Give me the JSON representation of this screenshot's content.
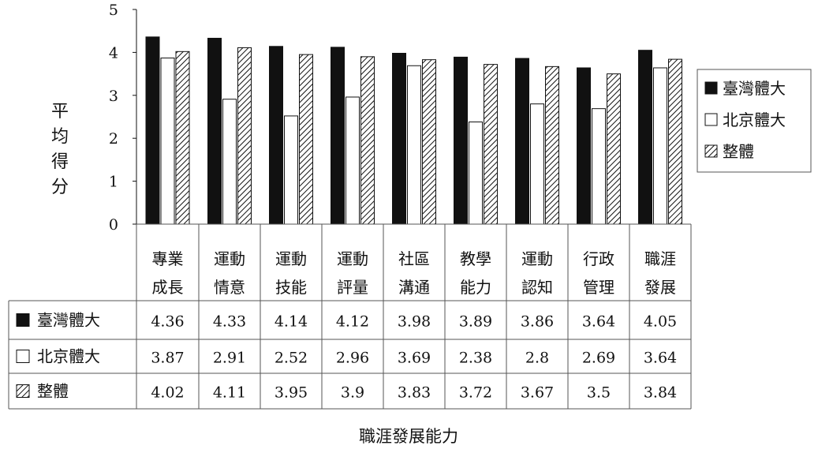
{
  "chart_data": {
    "type": "bar",
    "ylabel": "平均得分",
    "xlabel": "職涯發展能力",
    "ylim": [
      0,
      5
    ],
    "yticks": [
      "0",
      "1",
      "2",
      "3",
      "4",
      "5"
    ],
    "categories": [
      [
        "專業",
        "成長"
      ],
      [
        "運動",
        "情意"
      ],
      [
        "運動",
        "技能"
      ],
      [
        "運動",
        "評量"
      ],
      [
        "社區",
        "溝通"
      ],
      [
        "教學",
        "能力"
      ],
      [
        "運動",
        "認知"
      ],
      [
        "行政",
        "管理"
      ],
      [
        "職涯",
        "發展"
      ]
    ],
    "series": [
      {
        "name": "臺灣體大",
        "fill": "solid-black",
        "values": [
          4.36,
          4.33,
          4.14,
          4.12,
          3.98,
          3.89,
          3.86,
          3.64,
          4.05
        ],
        "labels": [
          "4.36",
          "4.33",
          "4.14",
          "4.12",
          "3.98",
          "3.89",
          "3.86",
          "3.64",
          "4.05"
        ]
      },
      {
        "name": "北京體大",
        "fill": "white",
        "values": [
          3.87,
          2.91,
          2.52,
          2.96,
          3.69,
          2.38,
          2.8,
          2.69,
          3.64
        ],
        "labels": [
          "3.87",
          "2.91",
          "2.52",
          "2.96",
          "3.69",
          "2.38",
          "2.8",
          "2.69",
          "3.64"
        ]
      },
      {
        "name": "整體",
        "fill": "diagonal-hatch",
        "values": [
          4.02,
          4.11,
          3.95,
          3.9,
          3.83,
          3.72,
          3.67,
          3.5,
          3.84
        ],
        "labels": [
          "4.02",
          "4.11",
          "3.95",
          "3.9",
          "3.83",
          "3.72",
          "3.67",
          "3.5",
          "3.84"
        ]
      }
    ],
    "legend_position": "right",
    "data_table": true,
    "colors": {
      "ink": "#111111",
      "background": "#ffffff"
    }
  }
}
